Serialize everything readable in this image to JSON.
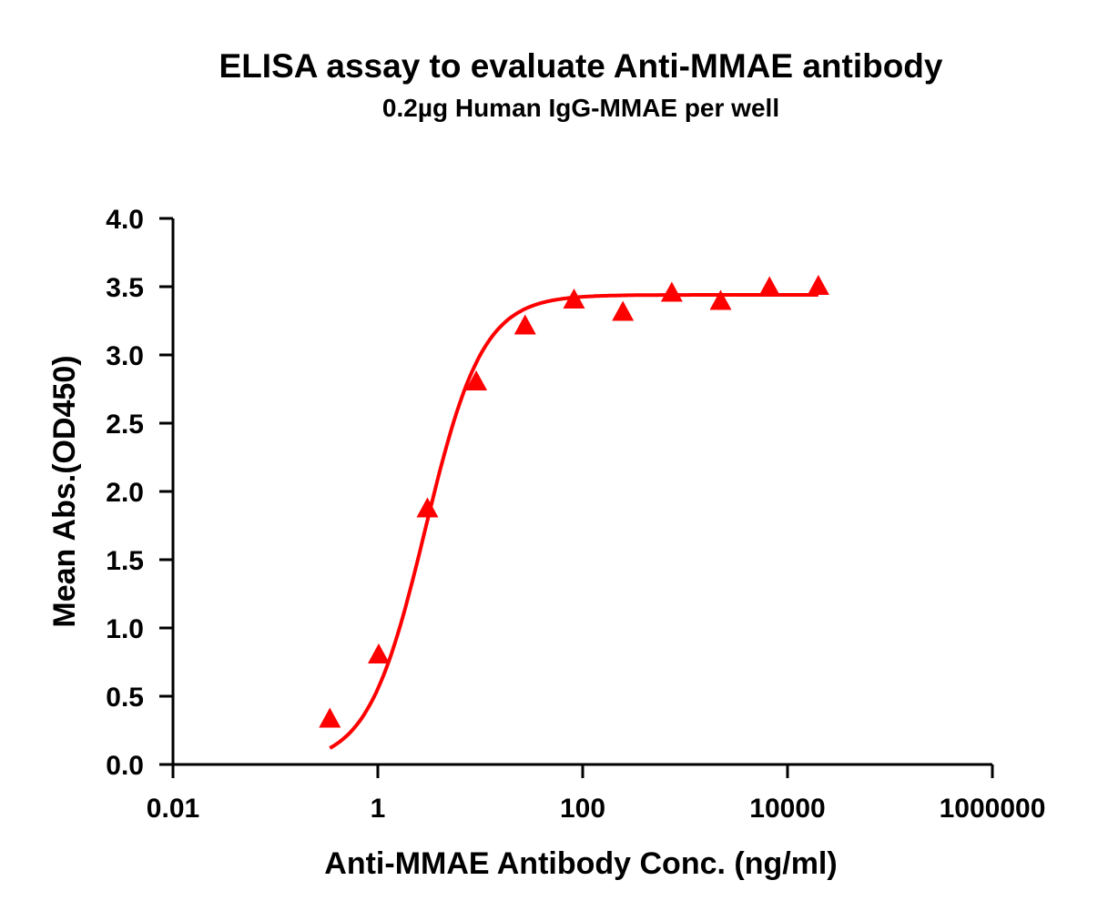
{
  "chart_data": {
    "type": "scatter",
    "title": "ELISA assay to evaluate Anti-MMAE antibody",
    "subtitle": "0.2µg Human IgG-MMAE per well",
    "xlabel": "Anti-MMAE Antibody Conc. (ng/ml)",
    "ylabel": "Mean Abs.(OD450)",
    "xscale": "log",
    "xlim": [
      0.01,
      1000000
    ],
    "ylim": [
      0,
      4.0
    ],
    "xticks": [
      "0.01",
      "1",
      "100",
      "10000",
      "1000000"
    ],
    "yticks": [
      "0.0",
      "0.5",
      "1.0",
      "1.5",
      "2.0",
      "2.5",
      "3.0",
      "3.5",
      "4.0"
    ],
    "grid": false,
    "series": [
      {
        "marker": "triangle",
        "color": "#ff0000",
        "fit": "sigmoidal curve",
        "x": [
          0.34,
          1.02,
          3.05,
          9.14,
          27.4,
          82.3,
          247,
          741,
          2222,
          6667,
          20000
        ],
        "y": [
          0.33,
          0.8,
          1.87,
          2.8,
          3.21,
          3.4,
          3.31,
          3.45,
          3.39,
          3.49,
          3.5
        ]
      }
    ]
  }
}
